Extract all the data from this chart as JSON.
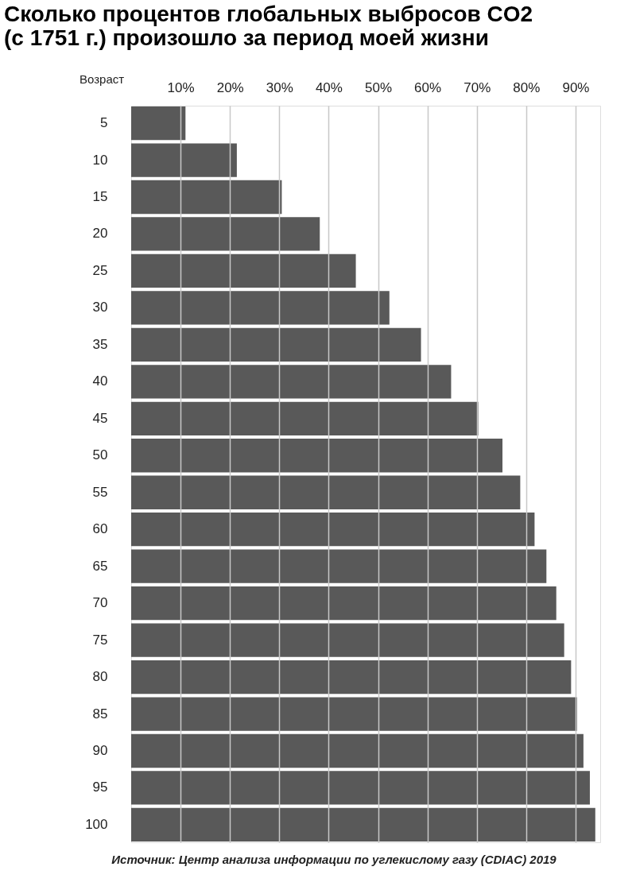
{
  "chart_data": {
    "type": "bar",
    "orientation": "horizontal",
    "title": "Сколько процентов глобальных выбросов CO2\n(с 1751 г.) произошло за период моей жизни",
    "ylabel": "Возраст",
    "categories": [
      "5",
      "10",
      "15",
      "20",
      "25",
      "30",
      "35",
      "40",
      "45",
      "50",
      "55",
      "60",
      "65",
      "70",
      "75",
      "80",
      "85",
      "90",
      "95",
      "100"
    ],
    "values": [
      11.0,
      21.4,
      30.5,
      38.2,
      45.5,
      52.3,
      58.7,
      64.8,
      70.3,
      75.2,
      78.8,
      81.7,
      84.1,
      86.1,
      87.7,
      89.1,
      90.3,
      91.6,
      92.9,
      94.0
    ],
    "color": "#595959",
    "xlim": [
      0,
      95
    ],
    "xticks": [
      {
        "value": 10,
        "label": "10%"
      },
      {
        "value": 20,
        "label": "20%"
      },
      {
        "value": 30,
        "label": "30%"
      },
      {
        "value": 40,
        "label": "40%"
      },
      {
        "value": 50,
        "label": "50%"
      },
      {
        "value": 60,
        "label": "60%"
      },
      {
        "value": 70,
        "label": "70%"
      },
      {
        "value": 80,
        "label": "80%"
      },
      {
        "value": 90,
        "label": "90%"
      }
    ],
    "grid": "x",
    "annotations": [
      "Источник: Центр анализа информации по углекислому газу (CDIAC)   2019"
    ]
  }
}
